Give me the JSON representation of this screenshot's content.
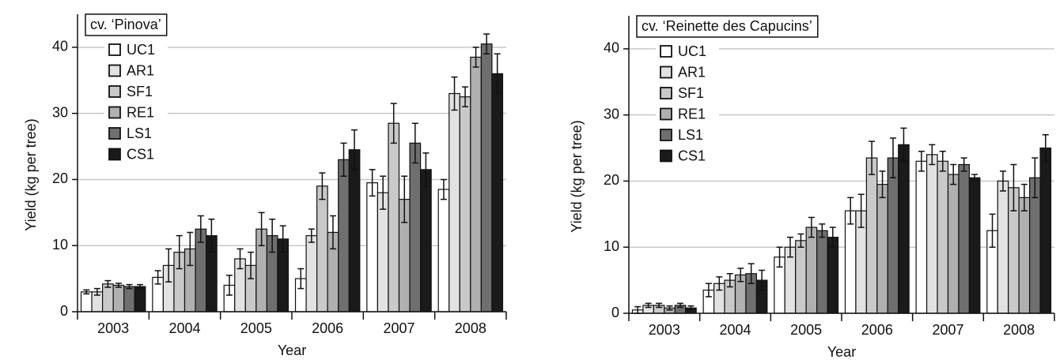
{
  "chart_data": [
    {
      "type": "bar",
      "title": "cv. ‘Pinova’",
      "xlabel": "Year",
      "ylabel": "Yield (kg per tree)",
      "categories": [
        "2003",
        "2004",
        "2005",
        "2006",
        "2007",
        "2008"
      ],
      "series": [
        {
          "name": "UC1",
          "color": "#ffffff",
          "values": [
            3,
            5.2,
            4,
            5,
            19.5,
            18.5
          ],
          "errors": [
            0.3,
            1,
            1.5,
            1.5,
            2,
            1.5
          ]
        },
        {
          "name": "AR1",
          "color": "#e2e2e2",
          "values": [
            3,
            7,
            8,
            11.5,
            18,
            33
          ],
          "errors": [
            0.5,
            2.5,
            1.5,
            1,
            2.5,
            2.5
          ]
        },
        {
          "name": "SF1",
          "color": "#c9c9c9",
          "values": [
            4.2,
            9,
            7,
            19,
            28.5,
            32.5
          ],
          "errors": [
            0.5,
            2.5,
            2,
            2,
            3,
            1.5
          ]
        },
        {
          "name": "RE1",
          "color": "#b0b0b0",
          "values": [
            4,
            9.5,
            12.5,
            12,
            17,
            38.5
          ],
          "errors": [
            0.3,
            2.5,
            2.5,
            2.5,
            3.5,
            1.5
          ]
        },
        {
          "name": "LS1",
          "color": "#6f6f6f",
          "values": [
            3.8,
            12.5,
            11.5,
            23,
            25.5,
            40.5
          ],
          "errors": [
            0.3,
            2,
            2.5,
            2.5,
            3,
            1.5
          ]
        },
        {
          "name": "CS1",
          "color": "#1a1a1a",
          "values": [
            3.8,
            11.5,
            11,
            24.5,
            21.5,
            36
          ],
          "errors": [
            0.3,
            2.5,
            2,
            3,
            2.5,
            3
          ]
        }
      ],
      "ylim": [
        0,
        45
      ],
      "yticks": [
        0,
        10,
        20,
        30,
        40
      ],
      "grid": true
    },
    {
      "type": "bar",
      "title": "cv. ‘Reinette des Capucins’",
      "xlabel": "Year",
      "ylabel": "Yield (kg per tree)",
      "categories": [
        "2003",
        "2004",
        "2005",
        "2006",
        "2007",
        "2008"
      ],
      "series": [
        {
          "name": "UC1",
          "color": "#ffffff",
          "values": [
            0.5,
            3.5,
            8.5,
            15.5,
            23,
            12.5
          ],
          "errors": [
            0.5,
            1,
            1.5,
            2,
            1.5,
            2.5
          ]
        },
        {
          "name": "AR1",
          "color": "#e2e2e2",
          "values": [
            1.2,
            4.5,
            10,
            15.5,
            24,
            20
          ],
          "errors": [
            0.3,
            1,
            1.5,
            2.5,
            1.5,
            1.5
          ]
        },
        {
          "name": "SF1",
          "color": "#c9c9c9",
          "values": [
            1.2,
            5,
            11,
            23.5,
            23,
            19
          ],
          "errors": [
            0.3,
            1,
            1,
            2.5,
            1.5,
            3.5
          ]
        },
        {
          "name": "RE1",
          "color": "#b0b0b0",
          "values": [
            0.8,
            5.8,
            13,
            19.5,
            21,
            17.5
          ],
          "errors": [
            0.3,
            1,
            1.5,
            2,
            1.5,
            2
          ]
        },
        {
          "name": "LS1",
          "color": "#6f6f6f",
          "values": [
            1.2,
            6,
            12.5,
            23.5,
            22.5,
            20.5
          ],
          "errors": [
            0.3,
            1.5,
            1,
            3,
            1,
            3
          ]
        },
        {
          "name": "CS1",
          "color": "#1a1a1a",
          "values": [
            0.8,
            5,
            11.5,
            25.5,
            20.5,
            25
          ],
          "errors": [
            0.3,
            1.5,
            1.5,
            2.5,
            0.5,
            2
          ]
        }
      ],
      "ylim": [
        0,
        45
      ],
      "yticks": [
        0,
        10,
        20,
        30,
        40
      ],
      "grid": true
    }
  ]
}
